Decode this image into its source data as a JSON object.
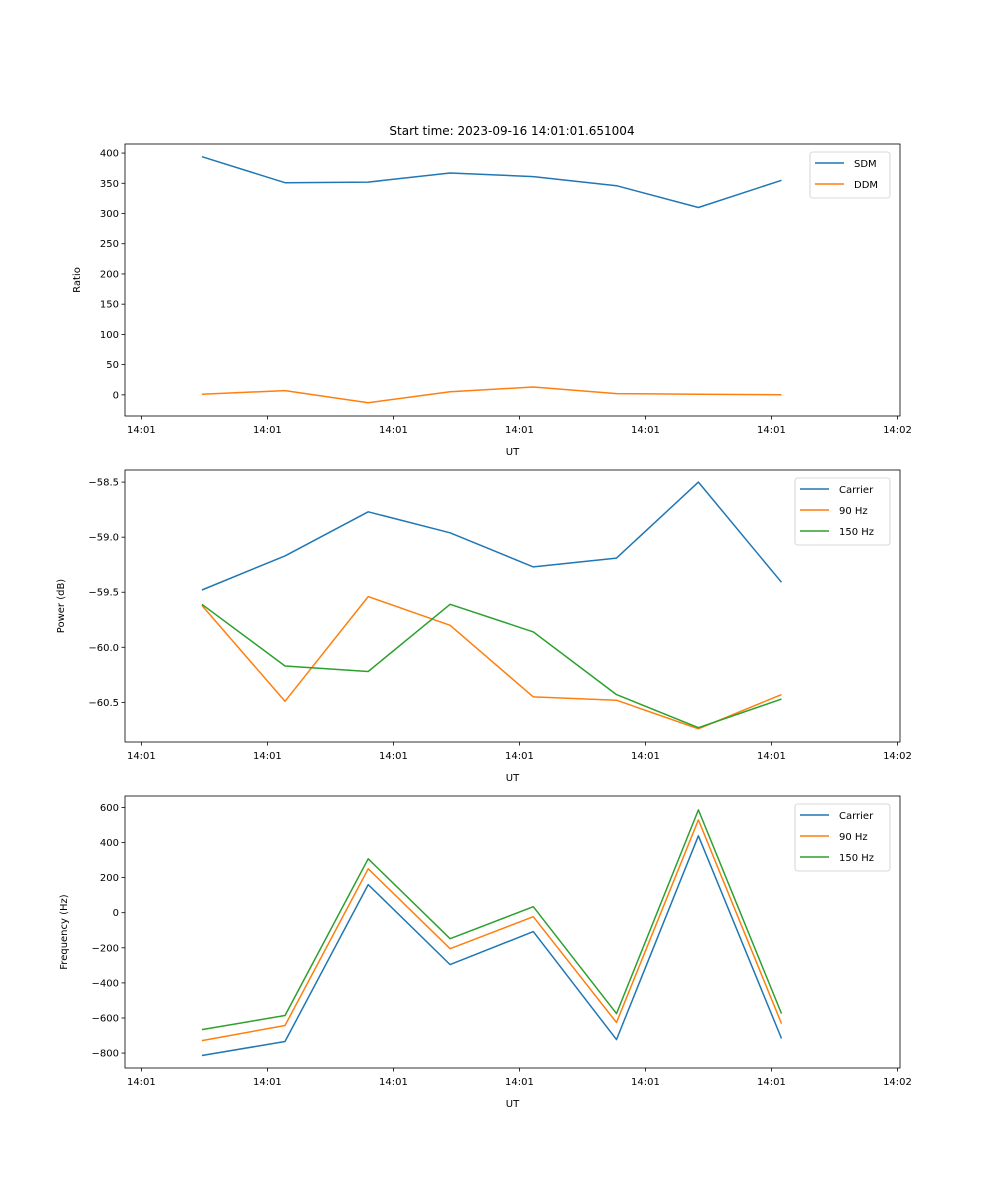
{
  "figure": {
    "title": "Start time: 2023-09-16 14:01:01.651004"
  },
  "chart_data": [
    {
      "type": "line",
      "title": "Start time: 2023-09-16 14:01:01.651004",
      "xlabel": "UT",
      "ylabel": "Ratio",
      "x_units": "seconds after 14:01:00",
      "x": [
        4.8,
        11.4,
        18.0,
        24.5,
        31.1,
        37.7,
        44.2,
        50.8
      ],
      "xlim": [
        -1.3,
        60.2
      ],
      "xticks": [
        0,
        10,
        20,
        30,
        40,
        50,
        60
      ],
      "xtick_labels": [
        "14:01",
        "14:01",
        "14:01",
        "14:01",
        "14:01",
        "14:01",
        "14:02"
      ],
      "ylim": [
        -35,
        415
      ],
      "yticks": [
        0,
        50,
        100,
        150,
        200,
        250,
        300,
        350,
        400
      ],
      "ytick_labels": [
        "0",
        "50",
        "100",
        "150",
        "200",
        "250",
        "300",
        "350",
        "400"
      ],
      "grid": false,
      "legend_position": "top-right",
      "series": [
        {
          "name": "SDM",
          "color": "#1f77b4",
          "values": [
            394,
            351,
            352,
            367,
            361,
            346,
            310,
            355
          ]
        },
        {
          "name": "DDM",
          "color": "#ff7f0e",
          "values": [
            1,
            7,
            -13,
            5,
            13,
            2,
            1,
            0
          ]
        }
      ]
    },
    {
      "type": "line",
      "title": "",
      "xlabel": "UT",
      "ylabel": "Power (dB)",
      "x_units": "seconds after 14:01:00",
      "x": [
        4.8,
        11.4,
        18.0,
        24.5,
        31.1,
        37.7,
        44.2,
        50.8
      ],
      "xlim": [
        -1.3,
        60.2
      ],
      "xticks": [
        0,
        10,
        20,
        30,
        40,
        50,
        60
      ],
      "xtick_labels": [
        "14:01",
        "14:01",
        "14:01",
        "14:01",
        "14:01",
        "14:01",
        "14:02"
      ],
      "ylim": [
        -60.86,
        -58.39
      ],
      "yticks": [
        -60.5,
        -60.0,
        -59.5,
        -59.0,
        -58.5
      ],
      "ytick_labels": [
        "−60.5",
        "−60.0",
        "−59.5",
        "−59.0",
        "−58.5"
      ],
      "grid": false,
      "legend_position": "top-right",
      "series": [
        {
          "name": "Carrier",
          "color": "#1f77b4",
          "values": [
            -59.48,
            -59.17,
            -58.77,
            -58.96,
            -59.27,
            -59.19,
            -58.5,
            -59.41
          ]
        },
        {
          "name": "90 Hz",
          "color": "#ff7f0e",
          "values": [
            -59.62,
            -60.49,
            -59.54,
            -59.8,
            -60.45,
            -60.48,
            -60.74,
            -60.43
          ]
        },
        {
          "name": "150 Hz",
          "color": "#2ca02c",
          "values": [
            -59.61,
            -60.17,
            -60.22,
            -59.61,
            -59.86,
            -60.43,
            -60.73,
            -60.47
          ]
        }
      ]
    },
    {
      "type": "line",
      "title": "",
      "xlabel": "UT",
      "ylabel": "Frequency (Hz)",
      "x_units": "seconds after 14:01:00",
      "x": [
        4.8,
        11.4,
        18.0,
        24.5,
        31.1,
        37.7,
        44.2,
        50.8
      ],
      "xlim": [
        -1.3,
        60.2
      ],
      "xticks": [
        0,
        10,
        20,
        30,
        40,
        50,
        60
      ],
      "xtick_labels": [
        "14:01",
        "14:01",
        "14:01",
        "14:01",
        "14:01",
        "14:01",
        "14:02"
      ],
      "ylim": [
        -885,
        665
      ],
      "yticks": [
        -800,
        -600,
        -400,
        -200,
        0,
        200,
        400,
        600
      ],
      "ytick_labels": [
        "−800",
        "−600",
        "−400",
        "−200",
        "0",
        "200",
        "400",
        "600"
      ],
      "grid": false,
      "legend_position": "top-right",
      "series": [
        {
          "name": "Carrier",
          "color": "#1f77b4",
          "values": [
            -814,
            -734,
            160,
            -296,
            -108,
            -723,
            438,
            -717
          ]
        },
        {
          "name": "90 Hz",
          "color": "#ff7f0e",
          "values": [
            -729,
            -643,
            250,
            -205,
            -23,
            -626,
            529,
            -632
          ]
        },
        {
          "name": "150 Hz",
          "color": "#2ca02c",
          "values": [
            -666,
            -586,
            307,
            -148,
            34,
            -575,
            586,
            -575
          ]
        }
      ]
    }
  ]
}
